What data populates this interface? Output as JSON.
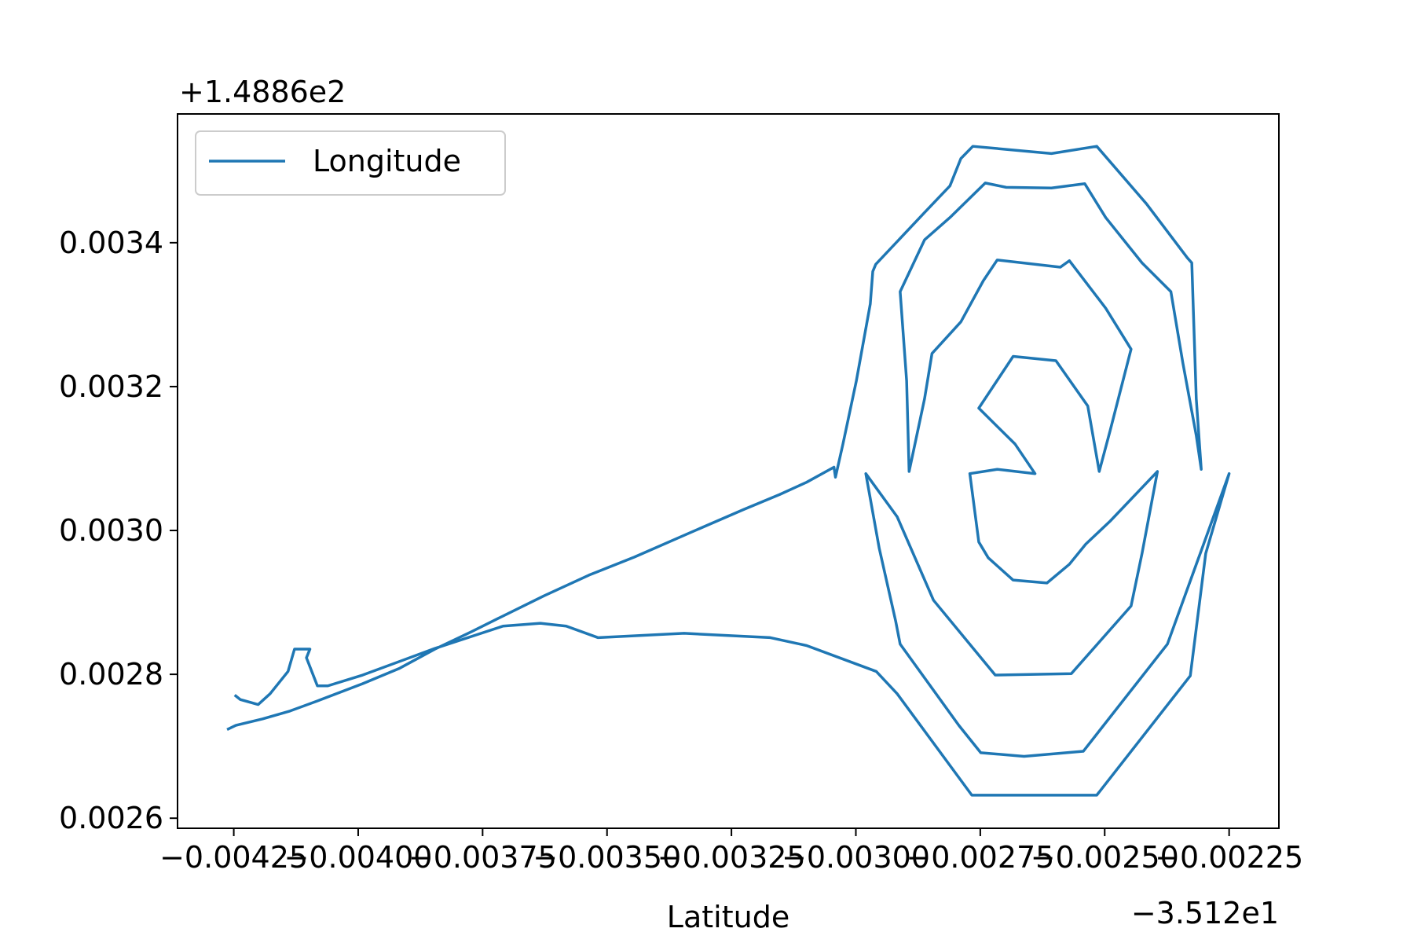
{
  "chart_data": {
    "type": "line",
    "xlabel": "Latitude",
    "x_offset_label": "−3.512e1",
    "y_offset_label": "+1.4886e2",
    "xlim": [
      -0.004363,
      -0.00215
    ],
    "ylim": [
      0.002586,
      0.003579
    ],
    "xticks": [
      {
        "value": -0.00425,
        "label": "−0.00425"
      },
      {
        "value": -0.004,
        "label": "−0.00400"
      },
      {
        "value": -0.00375,
        "label": "−0.00375"
      },
      {
        "value": -0.0035,
        "label": "−0.00350"
      },
      {
        "value": -0.00325,
        "label": "−0.00325"
      },
      {
        "value": -0.003,
        "label": "−0.00300"
      },
      {
        "value": -0.00275,
        "label": "−0.00275"
      },
      {
        "value": -0.0025,
        "label": "−0.00250"
      },
      {
        "value": -0.00225,
        "label": "−0.00225"
      }
    ],
    "yticks": [
      0.0026,
      0.0028,
      {
        "value": 0.003,
        "label": "0.0030"
      },
      0.0032,
      0.0034
    ],
    "grid": false,
    "legend": "upper left",
    "x": [
      -0.004261,
      -0.004246,
      -0.004192,
      -0.004137,
      -0.004082,
      -0.003991,
      -0.003918,
      -0.003846,
      -0.003773,
      -0.003718,
      -0.003627,
      -0.003536,
      -0.003445,
      -0.003336,
      -0.003226,
      -0.003153,
      -0.003099,
      -0.003044,
      -0.003041,
      -0.003026,
      -0.002999,
      -0.002971,
      -0.002966,
      -0.00296,
      -0.002862,
      -0.002811,
      -0.002789,
      -0.002765,
      -0.002607,
      -0.002516,
      -0.002416,
      -0.002334,
      -0.002325,
      -0.002316,
      -0.002306,
      -0.002316,
      -0.002343,
      -0.002367,
      -0.002425,
      -0.002498,
      -0.00254,
      -0.002607,
      -0.002698,
      -0.00274,
      -0.002811,
      -0.002862,
      -0.002911,
      -0.002898,
      -0.002893,
      -0.002862,
      -0.002847,
      -0.002789,
      -0.002744,
      -0.002716,
      -0.002589,
      -0.002571,
      -0.002498,
      -0.002447,
      -0.002489,
      -0.002511,
      -0.002534,
      -0.002598,
      -0.002684,
      -0.002753,
      -0.00268,
      -0.00264,
      -0.002716,
      -0.002771,
      -0.002753,
      -0.002734,
      -0.002684,
      -0.002616,
      -0.002571,
      -0.002538,
      -0.002489,
      -0.002394,
      -0.002425,
      -0.002447,
      -0.002567,
      -0.00272,
      -0.002844,
      -0.002917,
      -0.00298,
      -0.002953,
      -0.00292,
      -0.002911,
      -0.002793,
      -0.002749,
      -0.002662,
      -0.002543,
      -0.002374,
      -0.00225,
      -0.002297,
      -0.002328,
      -0.002516,
      -0.002643,
      -0.002767,
      -0.002917,
      -0.002959,
      -0.003099,
      -0.003172,
      -0.003345,
      -0.003518,
      -0.003582,
      -0.003634,
      -0.003709,
      -0.003846,
      -0.003991,
      -0.004061,
      -0.004082,
      -0.004104,
      -0.004097,
      -0.004128,
      -0.004141,
      -0.004177,
      -0.004201,
      -0.004237,
      -0.004246
    ],
    "series": [
      {
        "name": "Longitude",
        "color": "#1f77b4",
        "values": [
          0.002724,
          0.002729,
          0.002738,
          0.002749,
          0.002763,
          0.002787,
          0.002808,
          0.002835,
          0.002859,
          0.002878,
          0.002909,
          0.002938,
          0.002963,
          0.002996,
          0.003029,
          0.00305,
          0.003067,
          0.003088,
          0.003074,
          0.00312,
          0.003208,
          0.003315,
          0.00336,
          0.00337,
          0.003442,
          0.003479,
          0.003517,
          0.003534,
          0.003524,
          0.003534,
          0.003454,
          0.003379,
          0.003372,
          0.003183,
          0.003085,
          0.003132,
          0.003233,
          0.003332,
          0.003372,
          0.003435,
          0.003482,
          0.003476,
          0.003477,
          0.003483,
          0.003435,
          0.003404,
          0.003332,
          0.003208,
          0.003082,
          0.003183,
          0.003246,
          0.00329,
          0.003347,
          0.003376,
          0.003366,
          0.003375,
          0.003309,
          0.003252,
          0.003139,
          0.003082,
          0.003173,
          0.003236,
          0.003242,
          0.00317,
          0.00312,
          0.003079,
          0.003085,
          0.003079,
          0.002984,
          0.002962,
          0.002931,
          0.002927,
          0.002953,
          0.002981,
          0.003013,
          0.003082,
          0.002968,
          0.002895,
          0.002801,
          0.002799,
          0.002903,
          0.003019,
          0.003079,
          0.002975,
          0.002874,
          0.002842,
          0.002729,
          0.002691,
          0.002686,
          0.002693,
          0.002842,
          0.003079,
          0.002968,
          0.002798,
          0.002632,
          0.002632,
          0.002632,
          0.002773,
          0.002804,
          0.00284,
          0.002851,
          0.002857,
          0.002851,
          0.002867,
          0.002871,
          0.002867,
          0.002836,
          0.002799,
          0.002784,
          0.002784,
          0.002823,
          0.002835,
          0.002835,
          0.002804,
          0.002773,
          0.002758,
          0.002765,
          0.00277
        ]
      }
    ]
  }
}
